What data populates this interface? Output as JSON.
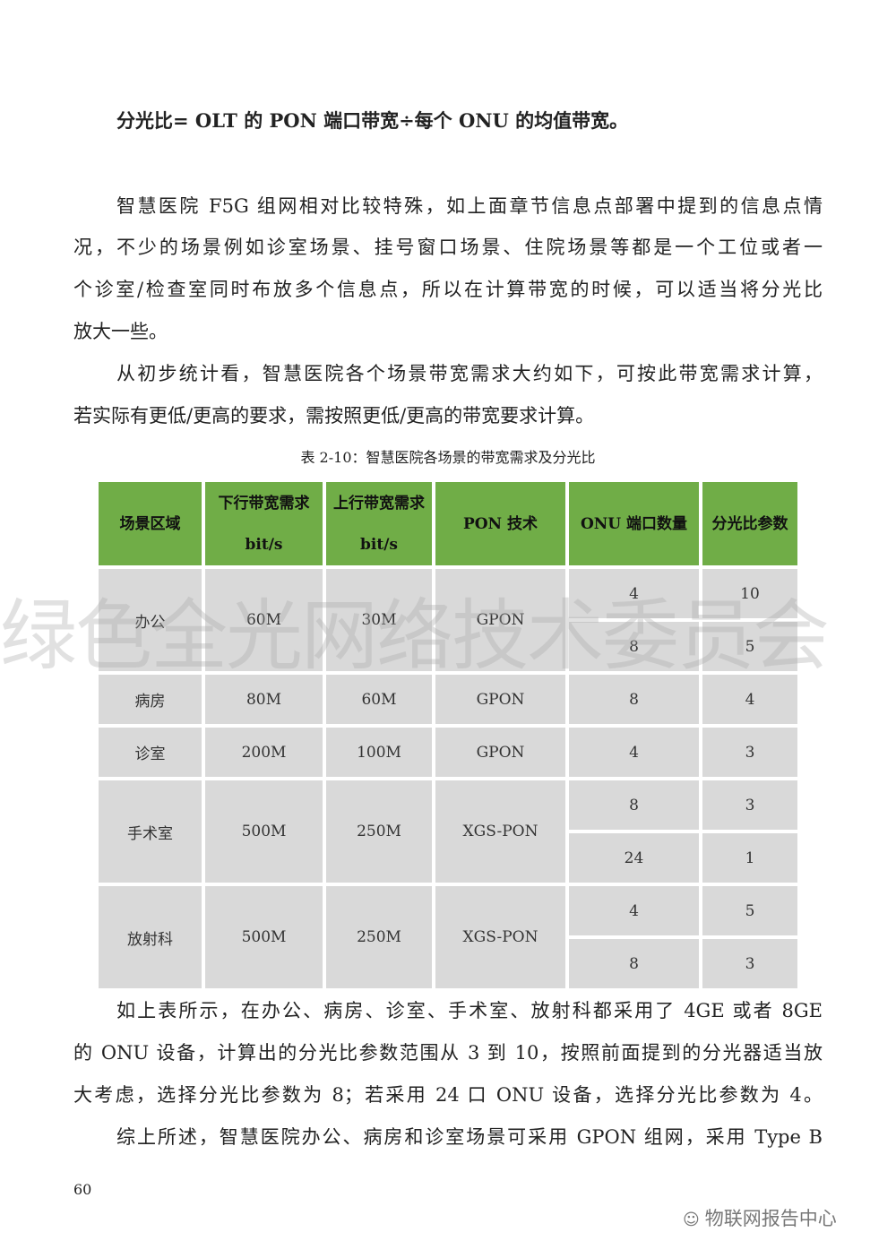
{
  "formula": "分光比= OLT 的 PON 端口带宽÷每个 ONU 的均值带宽。",
  "para1": [
    "智慧医院 F5G 组网相对比较特殊，如上面章节信息点部署中提到的信息点情",
    "况，不少的场景例如诊室场景、挂号窗口场景、住院场景等都是一个工位或者一",
    "个诊室/检查室同时布放多个信息点，所以在计算带宽的时候，可以适当将分光比",
    "放大一些。"
  ],
  "para2": [
    "从初步统计看，智慧医院各个场景带宽需求大约如下，可按此带宽需求计算，",
    "若实际有更低/更高的要求，需按照更低/更高的带宽要求计算。"
  ],
  "caption": "表 2-10：智慧医院各场景的带宽需求及分光比",
  "table": {
    "headers": [
      "场景区域",
      "下行带宽需求 bit/s",
      "上行带宽需求 bit/s",
      "PON 技术",
      "ONU 端口数量",
      "分光比参数"
    ],
    "rows": [
      {
        "scene": "办公",
        "down": "60M",
        "up": "30M",
        "pon": "GPON",
        "sub": [
          {
            "onu": "4",
            "ratio": "10"
          },
          {
            "onu": "8",
            "ratio": "5"
          }
        ]
      },
      {
        "scene": "病房",
        "down": "80M",
        "up": "60M",
        "pon": "GPON",
        "sub": [
          {
            "onu": "8",
            "ratio": "4"
          }
        ]
      },
      {
        "scene": "诊室",
        "down": "200M",
        "up": "100M",
        "pon": "GPON",
        "sub": [
          {
            "onu": "4",
            "ratio": "3"
          }
        ]
      },
      {
        "scene": "手术室",
        "down": "500M",
        "up": "250M",
        "pon": "XGS-PON",
        "sub": [
          {
            "onu": "8",
            "ratio": "3"
          },
          {
            "onu": "24",
            "ratio": "1"
          }
        ]
      },
      {
        "scene": "放射科",
        "down": "500M",
        "up": "250M",
        "pon": "XGS-PON",
        "sub": [
          {
            "onu": "4",
            "ratio": "5"
          },
          {
            "onu": "8",
            "ratio": "3"
          }
        ]
      }
    ]
  },
  "para3": [
    "如上表所示，在办公、病房、诊室、手术室、放射科都采用了 4GE 或者 8GE",
    "的 ONU 设备，计算出的分光比参数范围从 3 到 10，按照前面提到的分光器适当放",
    "大考虑，选择分光比参数为 8；若采用 24 口 ONU 设备，选择分光比参数为 4。"
  ],
  "para4": [
    "综上所述，智慧医院办公、病房和诊室场景可采用 GPON 组网，采用 Type B"
  ],
  "watermark": "绿色全光网络技术委员会",
  "page_number": "60",
  "brand": "物联网报告中心",
  "colors": {
    "header_bg": "#70ad47",
    "cell_bg": "#d9d9d9"
  }
}
